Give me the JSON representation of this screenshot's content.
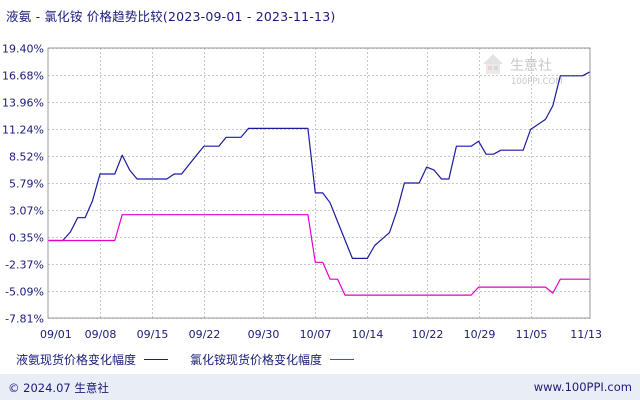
{
  "title": "液氨 - 氯化铵 价格趋势比较(2023-09-01 - 2023-11-13)",
  "watermark": {
    "brand": "生意社",
    "url": "100PPI.COM"
  },
  "legend": {
    "series1_label": "液氨现货价格变化幅度",
    "series2_label": "氯化铵现货价格变化幅度"
  },
  "footer": {
    "copyright": "© 2024.07 生意社",
    "website": "www.100PPI.com"
  },
  "colors": {
    "series1": "#1a1aa0",
    "series2": "#e000c8",
    "grid": "#c8c8c8",
    "axis_text": "#1a1a7a",
    "footer_bg": "#e9eef6"
  },
  "chart_data": {
    "type": "line",
    "title": "液氨 - 氯化铵 价格趋势比较(2023-09-01 - 2023-11-13)",
    "xlabel": "",
    "ylabel": "",
    "x_range": [
      "2023-09-01",
      "2023-11-13"
    ],
    "x_ticks": [
      {
        "label": "09/01",
        "date": "2023-09-01"
      },
      {
        "label": "09/08",
        "date": "2023-09-08"
      },
      {
        "label": "09/15",
        "date": "2023-09-15"
      },
      {
        "label": "09/22",
        "date": "2023-09-22"
      },
      {
        "label": "09/30",
        "date": "2023-09-30"
      },
      {
        "label": "10/07",
        "date": "2023-10-07"
      },
      {
        "label": "10/14",
        "date": "2023-10-14"
      },
      {
        "label": "10/22",
        "date": "2023-10-22"
      },
      {
        "label": "10/29",
        "date": "2023-10-29"
      },
      {
        "label": "11/05",
        "date": "2023-11-05"
      },
      {
        "label": "11/13",
        "date": "2023-11-13"
      }
    ],
    "y_ticks": [
      19.4,
      16.68,
      13.96,
      11.24,
      8.52,
      5.79,
      3.07,
      0.35,
      -2.37,
      -5.09,
      -7.81
    ],
    "y_tick_labels": [
      "19.40%",
      "16.68%",
      "13.96%",
      "11.24%",
      "8.52%",
      "5.79%",
      "3.07%",
      "0.35%",
      "-2.37%",
      "-5.09%",
      "-7.81%"
    ],
    "ylim": [
      -7.81,
      19.4
    ],
    "grid": true,
    "legend_position": "bottom",
    "series": [
      {
        "name": "液氨现货价格变化幅度",
        "color": "#1a1aa0",
        "points": [
          [
            "2023-09-01",
            0.0
          ],
          [
            "2023-09-03",
            0.0
          ],
          [
            "2023-09-04",
            0.85
          ],
          [
            "2023-09-05",
            2.3
          ],
          [
            "2023-09-06",
            2.3
          ],
          [
            "2023-09-07",
            4.0
          ],
          [
            "2023-09-08",
            6.7
          ],
          [
            "2023-09-10",
            6.7
          ],
          [
            "2023-09-11",
            8.6
          ],
          [
            "2023-09-12",
            7.1
          ],
          [
            "2023-09-13",
            6.2
          ],
          [
            "2023-09-17",
            6.2
          ],
          [
            "2023-09-18",
            6.7
          ],
          [
            "2023-09-19",
            6.7
          ],
          [
            "2023-09-21",
            8.6
          ],
          [
            "2023-09-22",
            9.5
          ],
          [
            "2023-09-24",
            9.5
          ],
          [
            "2023-09-25",
            10.4
          ],
          [
            "2023-09-27",
            10.4
          ],
          [
            "2023-09-28",
            11.3
          ],
          [
            "2023-10-06",
            11.3
          ],
          [
            "2023-10-07",
            4.8
          ],
          [
            "2023-10-08",
            4.8
          ],
          [
            "2023-10-09",
            3.8
          ],
          [
            "2023-10-10",
            1.9
          ],
          [
            "2023-10-12",
            -1.8
          ],
          [
            "2023-10-14",
            -1.8
          ],
          [
            "2023-10-15",
            -0.5
          ],
          [
            "2023-10-17",
            0.8
          ],
          [
            "2023-10-18",
            3.0
          ],
          [
            "2023-10-19",
            5.8
          ],
          [
            "2023-10-21",
            5.8
          ],
          [
            "2023-10-22",
            7.4
          ],
          [
            "2023-10-23",
            7.1
          ],
          [
            "2023-10-24",
            6.2
          ],
          [
            "2023-10-25",
            6.2
          ],
          [
            "2023-10-26",
            9.5
          ],
          [
            "2023-10-28",
            9.5
          ],
          [
            "2023-10-29",
            10.0
          ],
          [
            "2023-10-30",
            8.7
          ],
          [
            "2023-10-31",
            8.7
          ],
          [
            "2023-11-01",
            9.1
          ],
          [
            "2023-11-04",
            9.1
          ],
          [
            "2023-11-05",
            11.2
          ],
          [
            "2023-11-07",
            12.2
          ],
          [
            "2023-11-08",
            13.6
          ],
          [
            "2023-11-09",
            16.6
          ],
          [
            "2023-11-12",
            16.6
          ],
          [
            "2023-11-13",
            17.0
          ]
        ]
      },
      {
        "name": "氯化铵现货价格变化幅度",
        "color": "#e000c8",
        "points": [
          [
            "2023-09-01",
            0.0
          ],
          [
            "2023-09-10",
            0.0
          ],
          [
            "2023-09-11",
            2.6
          ],
          [
            "2023-10-06",
            2.6
          ],
          [
            "2023-10-07",
            -2.2
          ],
          [
            "2023-10-08",
            -2.2
          ],
          [
            "2023-10-09",
            -3.9
          ],
          [
            "2023-10-10",
            -3.9
          ],
          [
            "2023-10-11",
            -5.5
          ],
          [
            "2023-10-28",
            -5.5
          ],
          [
            "2023-10-29",
            -4.7
          ],
          [
            "2023-11-07",
            -4.7
          ],
          [
            "2023-11-08",
            -5.3
          ],
          [
            "2023-11-09",
            -3.9
          ],
          [
            "2023-11-13",
            -3.9
          ]
        ]
      }
    ]
  }
}
